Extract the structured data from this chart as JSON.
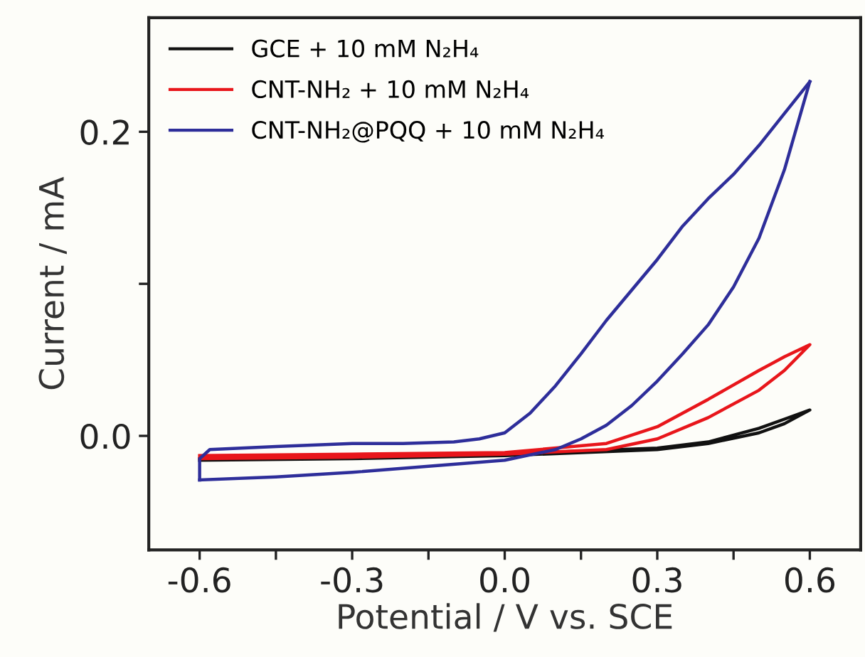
{
  "chart_data": {
    "type": "line",
    "xlabel": "Potential / V vs. SCE",
    "ylabel": "Current / mA",
    "xlim": [
      -0.7,
      0.7
    ],
    "ylim": [
      -0.075,
      0.275
    ],
    "xticks": [
      {
        "value": -0.6,
        "label": "-0.6"
      },
      {
        "value": -0.45,
        "label": null
      },
      {
        "value": -0.3,
        "label": "-0.3"
      },
      {
        "value": -0.15,
        "label": null
      },
      {
        "value": 0,
        "label": "0.0"
      },
      {
        "value": 0.15,
        "label": null
      },
      {
        "value": 0.3,
        "label": "0.3"
      },
      {
        "value": 0.45,
        "label": null
      },
      {
        "value": 0.6,
        "label": "0.6"
      }
    ],
    "yticks": [
      {
        "value": 0,
        "label": "0.0"
      },
      {
        "value": 0.1,
        "label": null
      },
      0.2
    ],
    "legend": "top left",
    "grid": false,
    "marker": "none",
    "line_style": "solid",
    "series": [
      {
        "name": "GCE + 10 mM N₂H₄",
        "color": "#111111",
        "x": [
          -0.6,
          -0.3,
          0.0,
          0.3,
          0.4,
          0.5,
          0.55,
          0.6,
          0.55,
          0.5,
          0.4,
          0.3,
          0.0,
          -0.3,
          -0.6
        ],
        "values": [
          -0.016,
          -0.015,
          -0.013,
          -0.009,
          -0.005,
          0.002,
          0.008,
          0.017,
          0.011,
          0.005,
          -0.004,
          -0.008,
          -0.012,
          -0.013,
          -0.015
        ]
      },
      {
        "name": "CNT-NH₂ + 10 mM N₂H₄",
        "color": "#e8161b",
        "x": [
          -0.6,
          -0.3,
          0.0,
          0.2,
          0.3,
          0.4,
          0.5,
          0.55,
          0.6,
          0.55,
          0.5,
          0.4,
          0.3,
          0.2,
          0.0,
          -0.3,
          -0.6
        ],
        "values": [
          -0.015,
          -0.014,
          -0.012,
          -0.009,
          -0.002,
          0.012,
          0.03,
          0.043,
          0.06,
          0.052,
          0.043,
          0.024,
          0.006,
          -0.005,
          -0.011,
          -0.012,
          -0.013
        ]
      },
      {
        "name": "CNT-NH₂@PQQ + 10 mM N₂H₄",
        "color": "#2e2e9a",
        "x": [
          -0.6,
          -0.45,
          -0.3,
          -0.15,
          0.0,
          0.1,
          0.15,
          0.2,
          0.25,
          0.3,
          0.35,
          0.4,
          0.45,
          0.5,
          0.55,
          0.6
        ],
        "values": [
          -0.029,
          -0.027,
          -0.024,
          -0.02,
          -0.016,
          -0.009,
          -0.002,
          0.007,
          0.02,
          0.036,
          0.054,
          0.073,
          0.098,
          0.13,
          0.175,
          0.233
        ]
      },
      {
        "color": "#2e2e9a",
        "x": [
          0.6,
          0.55,
          0.5,
          0.45,
          0.4,
          0.35,
          0.3,
          0.25,
          0.2,
          0.15,
          0.1,
          0.05,
          0.0,
          -0.05,
          -0.1,
          -0.2,
          -0.3,
          -0.45,
          -0.58,
          -0.6,
          -0.6
        ],
        "values": [
          0.233,
          0.212,
          0.191,
          0.172,
          0.156,
          0.138,
          0.116,
          0.096,
          0.076,
          0.054,
          0.033,
          0.015,
          0.002,
          -0.002,
          -0.004,
          -0.005,
          -0.005,
          -0.007,
          -0.009,
          -0.015,
          -0.029
        ]
      }
    ]
  }
}
